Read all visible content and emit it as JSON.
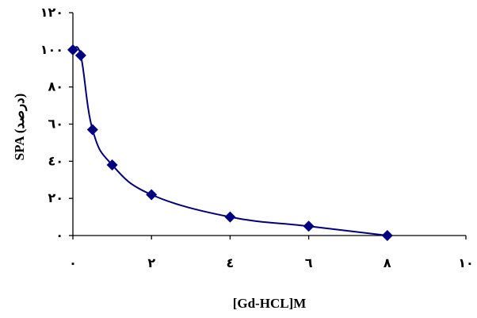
{
  "chart_data": {
    "type": "scatter",
    "title": "",
    "xlabel": "[Gd-HCL]M",
    "ylabel": "SPA (درصد)",
    "xlim": [
      0,
      10
    ],
    "ylim": [
      0,
      120
    ],
    "x_ticks": [
      0,
      2,
      4,
      6,
      8,
      10
    ],
    "x_tick_labels": [
      "۰",
      "۲",
      "٤",
      "٦",
      "۸",
      "۱۰"
    ],
    "y_ticks": [
      0,
      20,
      40,
      60,
      80,
      100,
      120
    ],
    "y_tick_labels": [
      "۰",
      "۲۰",
      "٤۰",
      "٦۰",
      "۸۰",
      "۱۰۰",
      "۱۲۰"
    ],
    "grid": false,
    "legend": "none",
    "series": [
      {
        "color": "#000080",
        "marker": "diamond",
        "smooth_line": true,
        "x": [
          0,
          0.2,
          0.5,
          1,
          2,
          4,
          6,
          8
        ],
        "y": [
          100,
          97,
          57,
          38,
          22,
          10,
          5,
          0
        ]
      }
    ]
  }
}
